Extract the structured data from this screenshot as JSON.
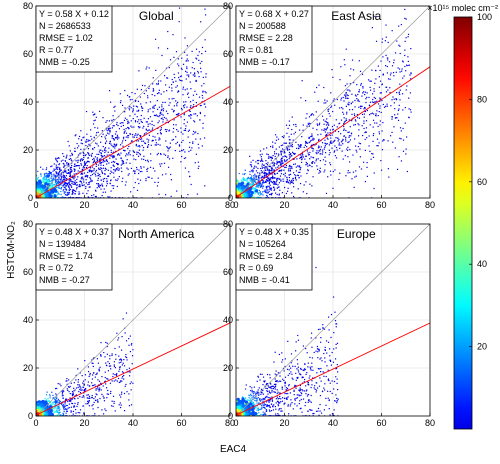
{
  "chart_data": [
    {
      "type": "scatter",
      "title": "Global",
      "stats": [
        "Y = 0.58 X + 0.12",
        "N = 2686533",
        "RMSE = 1.02",
        "R = 0.77",
        "NMB = -0.25"
      ],
      "fit": {
        "slope": 0.58,
        "intercept": 0.12
      },
      "xlim": [
        0,
        80
      ],
      "ylim": [
        0,
        80
      ],
      "xticks": [
        "0",
        "20",
        "40",
        "60",
        "80"
      ],
      "yticks": [
        "0",
        "20",
        "40",
        "60",
        "80"
      ],
      "spread": {
        "xmax": 70,
        "slope": 0.6,
        "noise": 14,
        "count": 2400
      }
    },
    {
      "type": "scatter",
      "title": "East Asia",
      "stats": [
        "Y = 0.68 X + 0.27",
        "N = 200588",
        "RMSE = 2.28",
        "R = 0.81",
        "NMB = -0.17"
      ],
      "fit": {
        "slope": 0.68,
        "intercept": 0.27
      },
      "xlim": [
        0,
        80
      ],
      "ylim": [
        0,
        80
      ],
      "xticks": [
        "0",
        "20",
        "40",
        "60",
        "80"
      ],
      "yticks": [
        "0",
        "20",
        "40",
        "60",
        "80"
      ],
      "spread": {
        "xmax": 72,
        "slope": 0.68,
        "noise": 13,
        "count": 2000
      }
    },
    {
      "type": "scatter",
      "title": "North America",
      "stats": [
        "Y = 0.48 X + 0.37",
        "N = 139484",
        "RMSE = 1.74",
        "R = 0.72",
        "NMB = -0.27"
      ],
      "fit": {
        "slope": 0.48,
        "intercept": 0.37
      },
      "xlim": [
        0,
        80
      ],
      "ylim": [
        0,
        80
      ],
      "xticks": [
        "0",
        "20",
        "40",
        "60",
        "80"
      ],
      "yticks": [
        "0",
        "20",
        "40",
        "60",
        "80"
      ],
      "spread": {
        "xmax": 40,
        "slope": 0.5,
        "noise": 8,
        "count": 900
      }
    },
    {
      "type": "scatter",
      "title": "Europe",
      "stats": [
        "Y = 0.48 X + 0.35",
        "N = 105264",
        "RMSE = 2.84",
        "R = 0.69",
        "NMB = -0.41"
      ],
      "fit": {
        "slope": 0.48,
        "intercept": 0.35
      },
      "xlim": [
        0,
        80
      ],
      "ylim": [
        0,
        80
      ],
      "xticks": [
        "0",
        "20",
        "40",
        "60",
        "80"
      ],
      "yticks": [
        "0",
        "20",
        "40",
        "60",
        "80"
      ],
      "spread": {
        "xmax": 42,
        "slope": 0.55,
        "noise": 10,
        "count": 1100
      }
    }
  ],
  "xlabel": "EAC4",
  "ylabel": "HSTCM-NO₂",
  "colorbar": {
    "label": "×10¹⁵ molec cm⁻²",
    "range": [
      0,
      100
    ],
    "ticks": [
      "20",
      "40",
      "60",
      "80",
      "100"
    ],
    "colormap": "jet"
  },
  "colors": {
    "fit_line": "#ff0000",
    "one_to_one": "#999999",
    "grid": "#dddddd"
  }
}
